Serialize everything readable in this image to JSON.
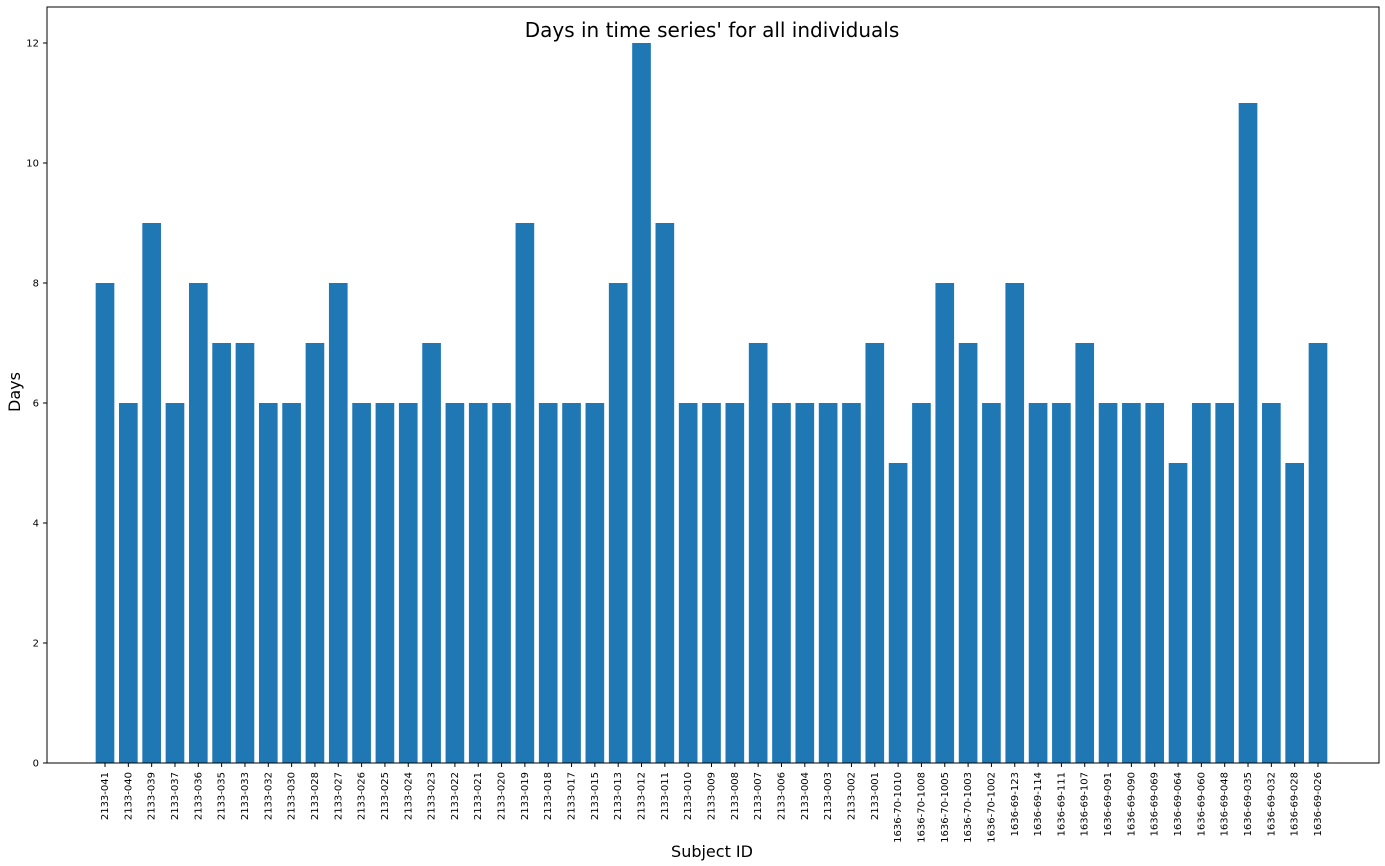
{
  "chart_data": {
    "type": "bar",
    "title": "Days in time series' for all individuals",
    "xlabel": "Subject ID",
    "ylabel": "Days",
    "ylim": [
      0,
      12.6
    ],
    "yticks": [
      0,
      2,
      4,
      6,
      8,
      10,
      12
    ],
    "grid": false,
    "bar_color": "#1f77b4",
    "categories": [
      "2133-041",
      "2133-040",
      "2133-039",
      "2133-037",
      "2133-036",
      "2133-035",
      "2133-033",
      "2133-032",
      "2133-030",
      "2133-028",
      "2133-027",
      "2133-026",
      "2133-025",
      "2133-024",
      "2133-023",
      "2133-022",
      "2133-021",
      "2133-020",
      "2133-019",
      "2133-018",
      "2133-017",
      "2133-015",
      "2133-013",
      "2133-012",
      "2133-011",
      "2133-010",
      "2133-009",
      "2133-008",
      "2133-007",
      "2133-006",
      "2133-004",
      "2133-003",
      "2133-002",
      "2133-001",
      "1636-70-1010",
      "1636-70-1008",
      "1636-70-1005",
      "1636-70-1003",
      "1636-70-1002",
      "1636-69-123",
      "1636-69-114",
      "1636-69-111",
      "1636-69-107",
      "1636-69-091",
      "1636-69-090",
      "1636-69-069",
      "1636-69-064",
      "1636-69-060",
      "1636-69-048",
      "1636-69-035",
      "1636-69-032",
      "1636-69-028",
      "1636-69-026"
    ],
    "values": [
      8,
      6,
      9,
      6,
      8,
      7,
      7,
      6,
      6,
      7,
      8,
      6,
      6,
      6,
      7,
      6,
      6,
      6,
      9,
      6,
      6,
      6,
      8,
      12,
      9,
      6,
      6,
      6,
      7,
      6,
      6,
      6,
      6,
      7,
      5,
      6,
      8,
      7,
      6,
      8,
      6,
      6,
      7,
      6,
      6,
      6,
      5,
      6,
      6,
      11,
      6,
      5,
      7
    ]
  }
}
